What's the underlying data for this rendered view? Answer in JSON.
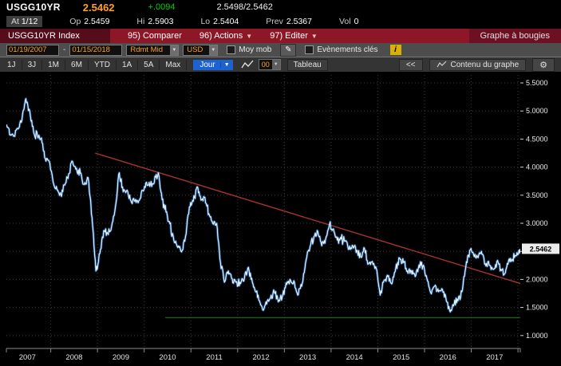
{
  "colors": {
    "amber": "#ffa028",
    "green": "#00d200",
    "red-bar": "#8e1727",
    "red-chip": "#560d1b",
    "red-tab": "#6d1022",
    "blue": "#1c62d1",
    "info-yellow": "#d9b003"
  },
  "quote": {
    "ticker": "USGG10YR",
    "last": "2.5462",
    "change": "+.0094",
    "bid_ask": "2.5498/2.5462",
    "at": {
      "label": "At",
      "value": "1/12"
    },
    "stats": [
      {
        "label": "Op",
        "value": "2.5459"
      },
      {
        "label": "Hi",
        "value": "2.5903"
      },
      {
        "label": "Lo",
        "value": "2.5404"
      },
      {
        "label": "Prev",
        "value": "2.5367"
      },
      {
        "label": "Vol",
        "value": "0"
      }
    ]
  },
  "menubar": {
    "security_button": "USGG10YR Index",
    "compare": "95) Comparer",
    "actions": "96) Actions",
    "edit": "97) Editer",
    "chart_title": "Graphe à bougies"
  },
  "toolbar": {
    "date_from": "01/19/2007",
    "date_to": "01/15/2018",
    "date_separator": "-",
    "field": "Rdmt Mid",
    "currency": "USD",
    "mov_avg": "Moy mob",
    "key_events": "Evènements clés",
    "info": "i",
    "periods": [
      "1J",
      "3J",
      "1M",
      "6M",
      "YTD",
      "1A",
      "5A",
      "Max"
    ],
    "frequency": "Jour",
    "overlay_count": "00",
    "table": "Tableau",
    "collapse": "<<",
    "chart_content": "Contenu du graphe"
  },
  "chart_data": {
    "type": "line",
    "title": "USGG10YR Index - Rdmt Mid (USD), Graphe à bougies",
    "x_start_year": 2007.05,
    "x_end_year": 2018.05,
    "x_tick_labels": [
      "2007",
      "2008",
      "2009",
      "2010",
      "2011",
      "2012",
      "2013",
      "2014",
      "2015",
      "2016",
      "2017"
    ],
    "y_ticks": [
      1.0,
      1.5,
      2.0,
      2.5,
      3.0,
      3.5,
      4.0,
      4.5,
      5.0,
      5.5
    ],
    "y_tick_labels": [
      "1.0000",
      "1.5000",
      "2.0000",
      "2.5000",
      "3.0000",
      "3.5000",
      "4.0000",
      "4.5000",
      "5.0000",
      "5.5000"
    ],
    "ylim": [
      0.71,
      5.64
    ],
    "grid": true,
    "last_value": 2.5462,
    "last_value_label": "2.5462",
    "line_color": "#ffffff",
    "glow_color": "#2f7fd6",
    "trend_line": {
      "color": "#a83232",
      "points": [
        [
          2008.95,
          4.25
        ],
        [
          2018.08,
          1.92
        ]
      ]
    },
    "support_line": {
      "color": "#1e7d1e",
      "value": 1.32,
      "x_range": [
        2010.45,
        2018.08
      ]
    },
    "monthly_points": {
      "start_year": 2007,
      "start_month": 1,
      "values": [
        4.76,
        4.58,
        4.56,
        4.68,
        4.84,
        5.22,
        5.0,
        4.62,
        4.55,
        4.52,
        4.15,
        4.1,
        3.74,
        3.6,
        3.51,
        3.68,
        3.88,
        4.1,
        3.98,
        3.89,
        3.69,
        3.81,
        3.1,
        2.15,
        2.46,
        2.87,
        2.82,
        2.93,
        3.29,
        3.9,
        3.56,
        3.59,
        3.4,
        3.39,
        3.4,
        3.59,
        3.73,
        3.69,
        3.73,
        3.9,
        3.42,
        3.2,
        2.99,
        2.7,
        2.57,
        2.49,
        2.76,
        3.29,
        3.39,
        3.65,
        3.41,
        3.46,
        3.17,
        3.0,
        3.0,
        2.3,
        1.95,
        2.15,
        2.01,
        1.95,
        1.95,
        1.97,
        2.2,
        2.02,
        1.78,
        1.62,
        1.45,
        1.62,
        1.72,
        1.75,
        1.63,
        1.72,
        1.91,
        1.98,
        1.95,
        1.73,
        1.93,
        2.35,
        2.58,
        2.76,
        2.85,
        2.6,
        2.72,
        2.98,
        2.9,
        2.7,
        2.72,
        2.68,
        2.54,
        2.6,
        2.52,
        2.4,
        2.55,
        2.28,
        2.32,
        2.2,
        1.72,
        1.98,
        2.05,
        1.92,
        2.2,
        2.38,
        2.3,
        2.15,
        2.15,
        2.05,
        2.26,
        2.24,
        2.02,
        1.76,
        1.88,
        1.78,
        1.82,
        1.62,
        1.42,
        1.56,
        1.62,
        1.78,
        2.22,
        2.52,
        2.44,
        2.4,
        2.5,
        2.28,
        2.25,
        2.18,
        2.32,
        2.18,
        2.1,
        2.34,
        2.36,
        2.42,
        2.546
      ]
    }
  }
}
